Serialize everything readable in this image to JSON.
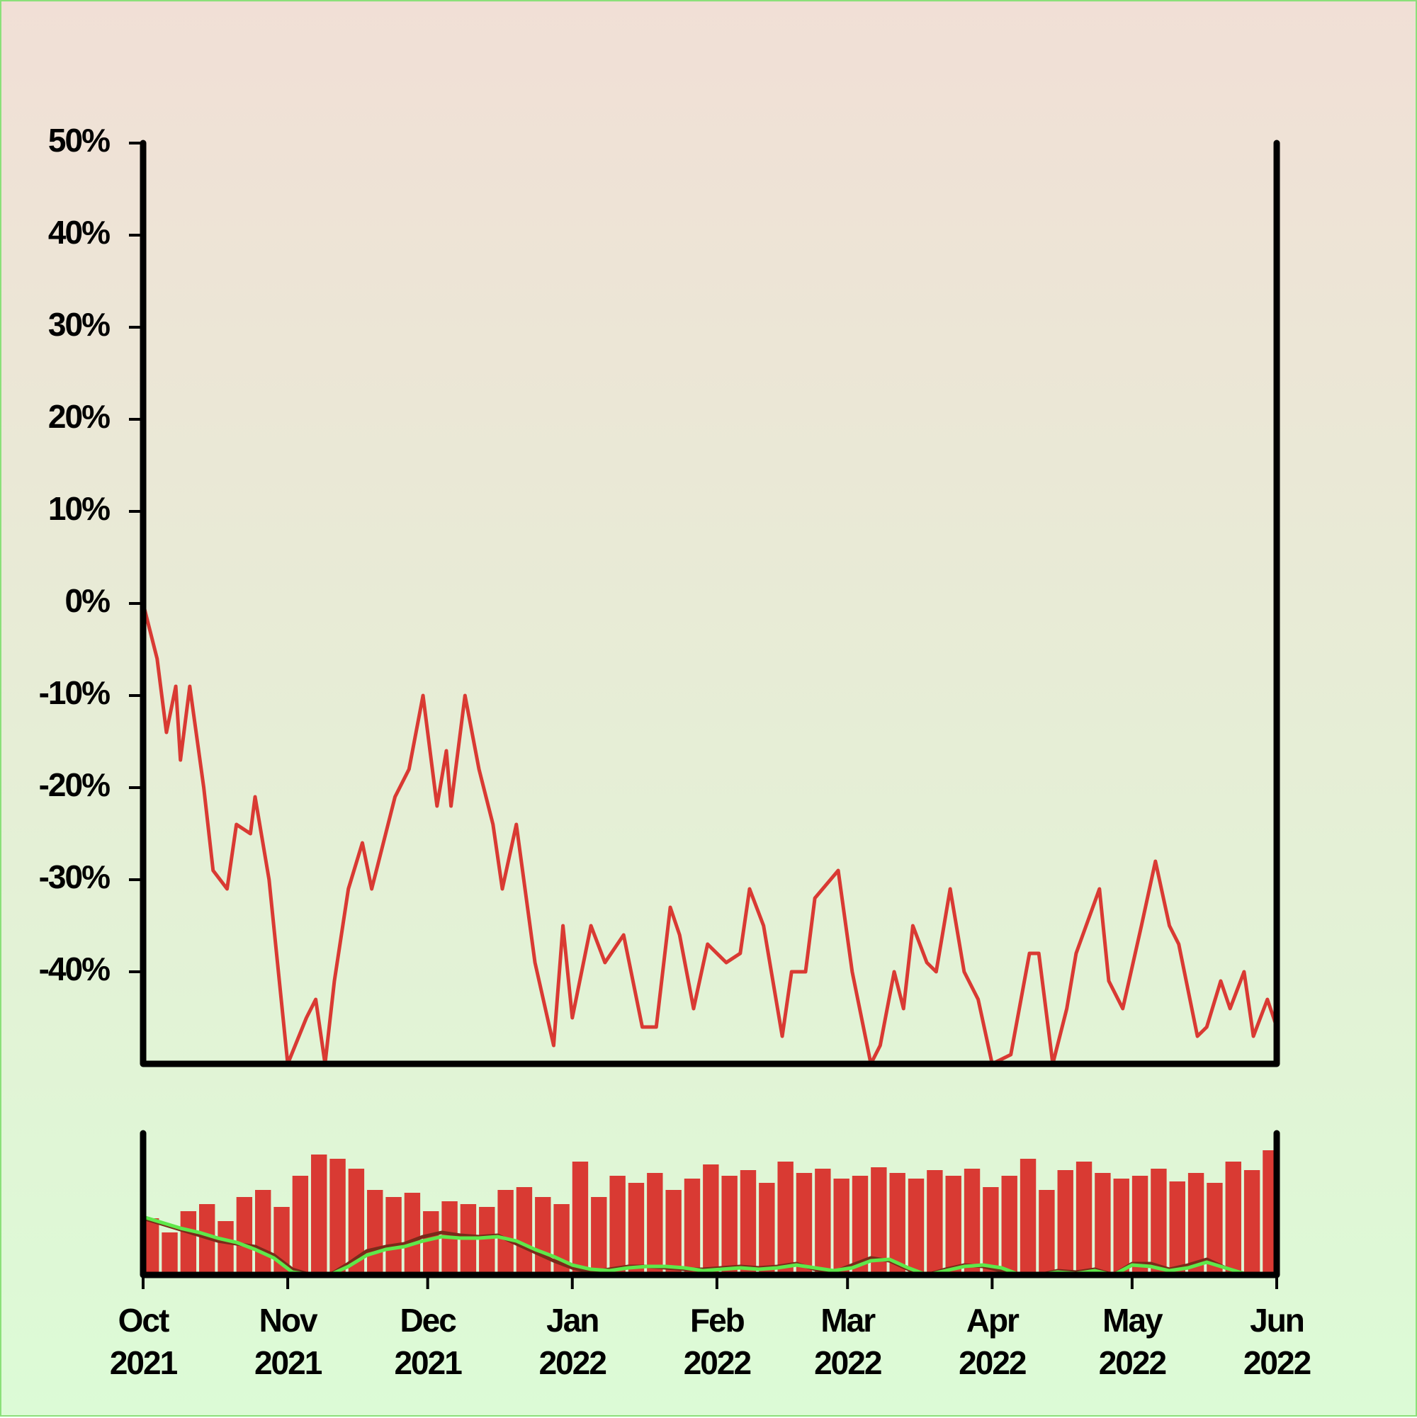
{
  "chart_data": [
    {
      "type": "line",
      "color": "#d93a33",
      "xlim": [
        "2021-10-01",
        "2022-06-01"
      ],
      "ylim": [
        -50,
        50
      ],
      "yticks": [
        {
          "value": -40,
          "label": "-40%"
        },
        {
          "value": -30,
          "label": "-30%"
        },
        {
          "value": -20,
          "label": "-20%"
        },
        {
          "value": -10,
          "label": "-10%"
        },
        {
          "value": 0,
          "label": "0%"
        },
        {
          "value": 10,
          "label": "10%"
        },
        {
          "value": 20,
          "label": "20%"
        },
        {
          "value": 30,
          "label": "30%"
        },
        {
          "value": 40,
          "label": "40%"
        },
        {
          "value": 50,
          "label": "50%"
        }
      ],
      "x": [
        "2021-10-01",
        "2021-10-04",
        "2021-10-06",
        "2021-10-08",
        "2021-10-09",
        "2021-10-11",
        "2021-10-14",
        "2021-10-16",
        "2021-10-19",
        "2021-10-21",
        "2021-10-24",
        "2021-10-25",
        "2021-10-28",
        "2021-11-01",
        "2021-11-05",
        "2021-11-07",
        "2021-11-09",
        "2021-11-11",
        "2021-11-14",
        "2021-11-17",
        "2021-11-19",
        "2021-11-21",
        "2021-11-24",
        "2021-11-27",
        "2021-11-30",
        "2021-12-03",
        "2021-12-05",
        "2021-12-06",
        "2021-12-09",
        "2021-12-12",
        "2021-12-15",
        "2021-12-17",
        "2021-12-20",
        "2021-12-24",
        "2021-12-28",
        "2021-12-30",
        "2022-01-01",
        "2022-01-05",
        "2022-01-08",
        "2022-01-12",
        "2022-01-16",
        "2022-01-19",
        "2022-01-22",
        "2022-01-24",
        "2022-01-27",
        "2022-01-30",
        "2022-02-03",
        "2022-02-06",
        "2022-02-08",
        "2022-02-11",
        "2022-02-15",
        "2022-02-17",
        "2022-02-20",
        "2022-02-22",
        "2022-02-27",
        "2022-03-02",
        "2022-03-06",
        "2022-03-08",
        "2022-03-11",
        "2022-03-13",
        "2022-03-15",
        "2022-03-18",
        "2022-03-20",
        "2022-03-23",
        "2022-03-26",
        "2022-03-29",
        "2022-04-01",
        "2022-04-05",
        "2022-04-09",
        "2022-04-11",
        "2022-04-14",
        "2022-04-17",
        "2022-04-19",
        "2022-04-24",
        "2022-04-26",
        "2022-04-29",
        "2022-05-03",
        "2022-05-06",
        "2022-05-09",
        "2022-05-11",
        "2022-05-15",
        "2022-05-17",
        "2022-05-20",
        "2022-05-22",
        "2022-05-25",
        "2022-05-27",
        "2022-05-30",
        "2022-06-01"
      ],
      "values": [
        0,
        -6,
        -14,
        -9,
        -17,
        -9,
        -20,
        -29,
        -31,
        -24,
        -25,
        -21,
        -30,
        -50,
        -45,
        -43,
        -50,
        -41,
        -31,
        -26,
        -31,
        -27,
        -21,
        -18,
        -10,
        -22,
        -16,
        -22,
        -10,
        -18,
        -24,
        -31,
        -24,
        -39,
        -48,
        -35,
        -45,
        -35,
        -39,
        -36,
        -46,
        -46,
        -33,
        -36,
        -44,
        -37,
        -39,
        -38,
        -31,
        -35,
        -47,
        -40,
        -40,
        -32,
        -29,
        -40,
        -50,
        -48,
        -40,
        -44,
        -35,
        -39,
        -40,
        -31,
        -40,
        -43,
        -50,
        -49,
        -38,
        -38,
        -50,
        -44,
        -38,
        -31,
        -41,
        -44,
        -35,
        -28,
        -35,
        -37,
        -47,
        -46,
        -41,
        -44,
        -40,
        -47,
        -43,
        -46
      ]
    },
    {
      "type": "bar",
      "xlim": [
        "2021-10-01",
        "2022-06-01"
      ],
      "ylim": [
        0,
        100
      ],
      "xticks": [
        {
          "value": "2021-10-01",
          "label": "Oct 2021"
        },
        {
          "value": "2021-11-01",
          "label": "Nov 2021"
        },
        {
          "value": "2021-12-01",
          "label": "Dec 2021"
        },
        {
          "value": "2022-01-01",
          "label": "Jan 2022"
        },
        {
          "value": "2022-02-01",
          "label": "Feb 2022"
        },
        {
          "value": "2022-03-01",
          "label": "Mar 2022"
        },
        {
          "value": "2022-04-01",
          "label": "Apr 2022"
        },
        {
          "value": "2022-05-01",
          "label": "May 2022"
        },
        {
          "value": "2022-06-01",
          "label": "Jun 2022"
        }
      ],
      "x": [
        "2021-10-01",
        "2021-10-05",
        "2021-10-09",
        "2021-10-13",
        "2021-10-17",
        "2021-10-21",
        "2021-10-25",
        "2021-10-29",
        "2021-11-02",
        "2021-11-06",
        "2021-11-10",
        "2021-11-14",
        "2021-11-18",
        "2021-11-22",
        "2021-11-26",
        "2021-11-30",
        "2021-12-04",
        "2021-12-08",
        "2021-12-12",
        "2021-12-16",
        "2021-12-20",
        "2021-12-24",
        "2021-12-28",
        "2022-01-01",
        "2022-01-05",
        "2022-01-09",
        "2022-01-13",
        "2022-01-17",
        "2022-01-21",
        "2022-01-25",
        "2022-01-29",
        "2022-02-02",
        "2022-02-06",
        "2022-02-10",
        "2022-02-14",
        "2022-02-18",
        "2022-02-22",
        "2022-02-26",
        "2022-03-02",
        "2022-03-06",
        "2022-03-10",
        "2022-03-14",
        "2022-03-18",
        "2022-03-22",
        "2022-03-26",
        "2022-03-30",
        "2022-04-03",
        "2022-04-07",
        "2022-04-11",
        "2022-04-15",
        "2022-04-19",
        "2022-04-23",
        "2022-04-27",
        "2022-05-01",
        "2022-05-05",
        "2022-05-09",
        "2022-05-13",
        "2022-05-17",
        "2022-05-21",
        "2022-05-25",
        "2022-05-29"
      ],
      "series": [
        {
          "type": "bar",
          "color": "#d93a33",
          "values": [
            40,
            30,
            45,
            50,
            38,
            55,
            60,
            48,
            70,
            85,
            82,
            75,
            60,
            55,
            58,
            45,
            52,
            50,
            48,
            60,
            62,
            55,
            50,
            80,
            55,
            70,
            65,
            72,
            60,
            68,
            78,
            70,
            74,
            65,
            80,
            72,
            75,
            68,
            70,
            76,
            72,
            68,
            74,
            70,
            75,
            62,
            70,
            82,
            60,
            74,
            80,
            72,
            68,
            70,
            75,
            66,
            72,
            65,
            80,
            74,
            88
          ]
        },
        {
          "type": "line",
          "color": "#7a2a1a",
          "values": [
            40,
            36,
            32,
            28,
            24,
            22,
            20,
            14,
            4,
            0,
            0,
            8,
            17,
            20,
            22,
            27,
            30,
            28,
            27,
            28,
            22,
            16,
            10,
            5,
            2,
            4,
            6,
            6,
            5,
            4,
            4,
            5,
            6,
            5,
            6,
            8,
            4,
            2,
            7,
            12,
            10,
            4,
            0,
            4,
            7,
            6,
            3,
            0,
            0,
            3,
            2,
            4,
            0,
            8,
            8,
            4,
            7,
            11,
            5,
            1,
            0
          ]
        },
        {
          "type": "line",
          "color": "#5ee84a",
          "values": [
            41,
            37,
            33,
            30,
            26,
            23,
            18,
            12,
            2,
            0,
            0,
            6,
            14,
            18,
            20,
            24,
            27,
            26,
            26,
            27,
            24,
            18,
            13,
            7,
            4,
            3,
            5,
            6,
            6,
            5,
            3,
            4,
            5,
            4,
            5,
            7,
            5,
            3,
            5,
            10,
            11,
            5,
            0,
            3,
            6,
            7,
            5,
            0,
            0,
            2,
            1,
            3,
            0,
            7,
            6,
            3,
            5,
            9,
            5,
            1,
            1
          ]
        }
      ]
    }
  ]
}
